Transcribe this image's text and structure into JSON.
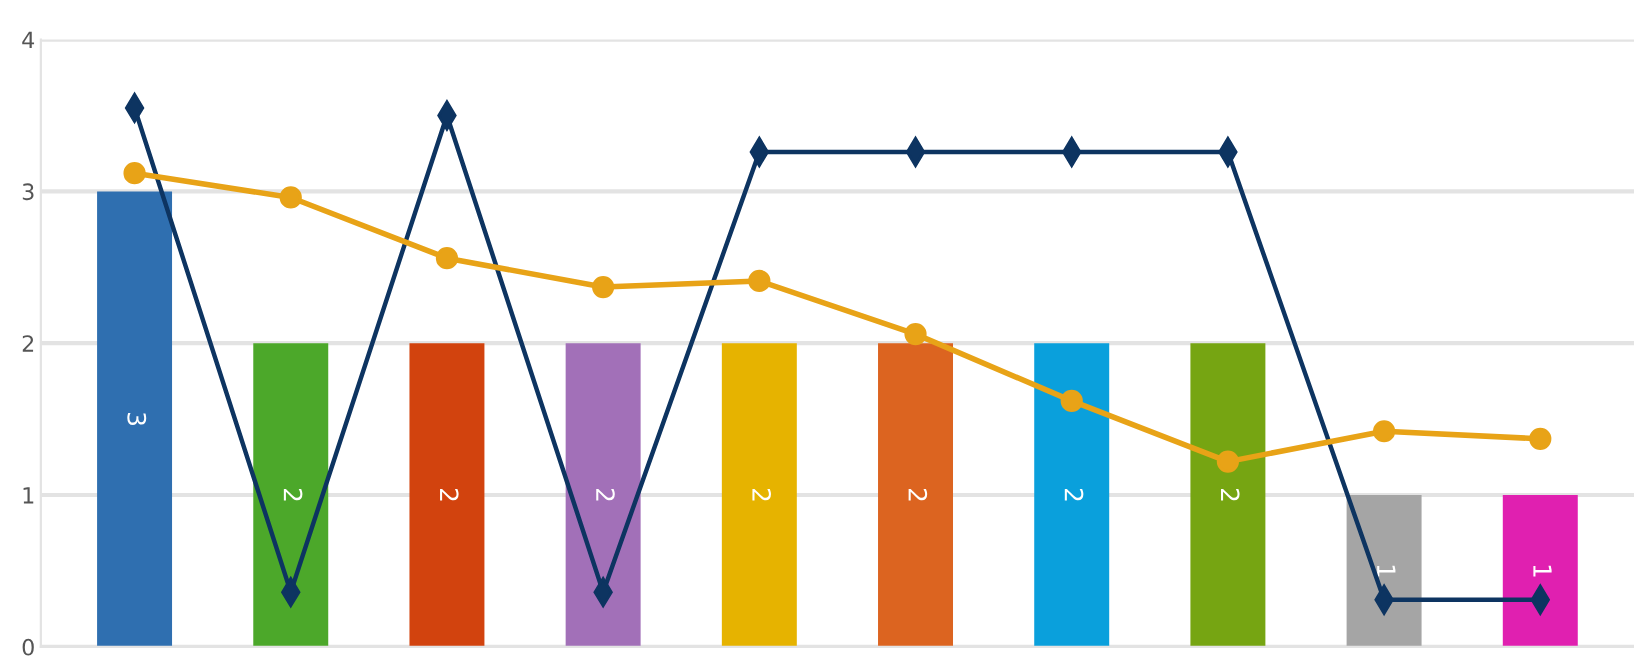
{
  "chart_data": {
    "type": "bar",
    "categories": [
      null,
      null,
      null,
      null,
      null,
      null,
      null,
      null,
      null,
      null
    ],
    "series": [
      {
        "colors": [
          "#2f6fb0",
          "#4ca82a",
          "#d2430e",
          "#a270b8",
          "#e6b300",
          "#dc6420",
          "#0aa0dc",
          "#76a512",
          "#a5a5a5",
          "#e020b0"
        ],
        "values": [
          3,
          2,
          2,
          2,
          2,
          2,
          2,
          2,
          1,
          1
        ],
        "value_labels": [
          "3",
          "2",
          "2",
          "2",
          "2",
          "2",
          "2",
          "2",
          "1",
          "1"
        ]
      },
      {
        "type": "line",
        "color": "#0d3461",
        "marker": "diamond",
        "values": [
          3.55,
          0.36,
          3.5,
          0.36,
          3.26,
          3.26,
          3.26,
          3.26,
          0.31,
          0.31
        ]
      },
      {
        "type": "line",
        "color": "#e8a317",
        "marker": "circle",
        "values": [
          3.12,
          2.96,
          2.56,
          2.37,
          2.41,
          2.06,
          1.62,
          1.22,
          1.42,
          1.37
        ]
      }
    ],
    "ylim": [
      0,
      4
    ],
    "yticks": [
      0,
      1,
      2,
      3,
      4
    ],
    "grid": "y",
    "tick_labels": "y"
  }
}
